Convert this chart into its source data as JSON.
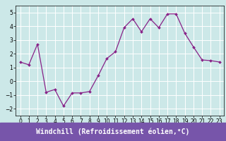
{
  "x": [
    0,
    1,
    2,
    3,
    4,
    5,
    6,
    7,
    8,
    9,
    10,
    11,
    12,
    13,
    14,
    15,
    16,
    17,
    18,
    19,
    20,
    21,
    22,
    23
  ],
  "y": [
    1.4,
    1.2,
    2.7,
    -0.8,
    -0.6,
    -1.8,
    -0.85,
    -0.85,
    -0.75,
    0.4,
    1.65,
    2.15,
    3.9,
    4.55,
    3.6,
    4.55,
    3.9,
    4.9,
    4.9,
    3.5,
    2.5,
    1.55,
    1.5,
    1.4
  ],
  "line_color": "#882288",
  "marker": "D",
  "markersize": 2.0,
  "linewidth": 0.9,
  "bg_color": "#cce8e8",
  "grid_color": "#ffffff",
  "xlabel": "Windchill (Refroidissement éolien,°C)",
  "xlabel_bg": "#7755aa",
  "xlabel_color": "#ffffff",
  "ylim": [
    -2.5,
    5.5
  ],
  "yticks": [
    -2,
    -1,
    0,
    1,
    2,
    3,
    4,
    5
  ],
  "xticks": [
    0,
    1,
    2,
    3,
    4,
    5,
    6,
    7,
    8,
    9,
    10,
    11,
    12,
    13,
    14,
    15,
    16,
    17,
    18,
    19,
    20,
    21,
    22,
    23
  ],
  "tick_fontsize": 5.5,
  "xlabel_fontsize": 7.0,
  "xlim": [
    -0.5,
    23.5
  ]
}
